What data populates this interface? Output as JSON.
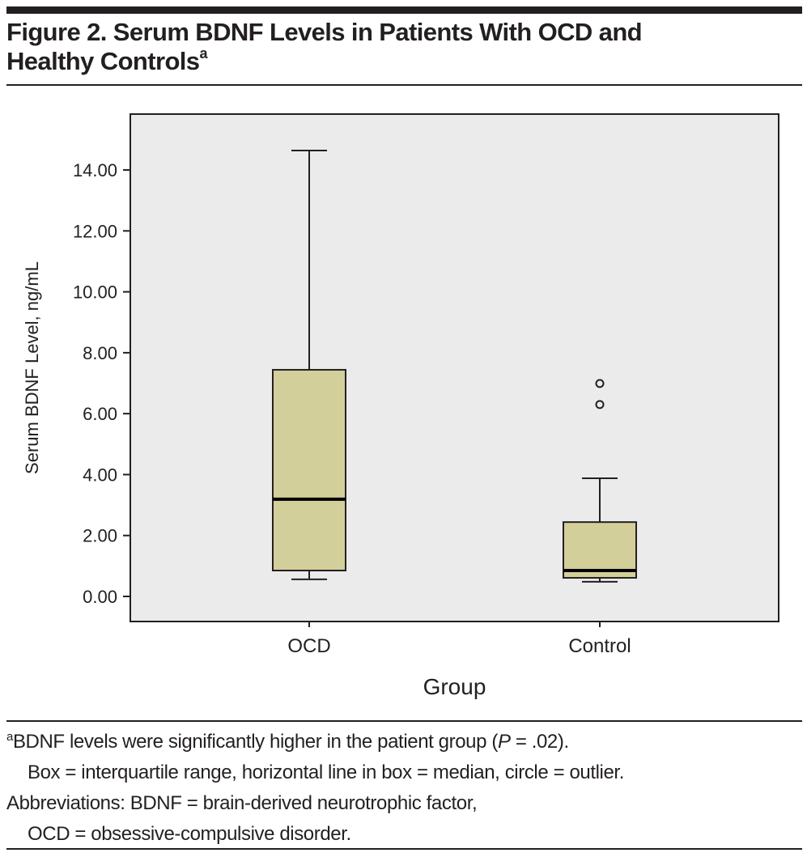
{
  "figure": {
    "title_line1": "Figure 2. Serum BDNF Levels in Patients With OCD and",
    "title_line2": "Healthy Controls",
    "title_superscript": "a"
  },
  "footnotes": {
    "marker": "a",
    "line1": "BDNF levels were significantly higher in the patient group (",
    "line1_p": "P",
    "line1_end": " = .02).",
    "line2": "Box = interquartile range, horizontal line in box = median, circle = outlier.",
    "line3": "Abbreviations: BDNF = brain-derived neurotrophic factor,",
    "line4": "OCD = obsessive-compulsive disorder."
  },
  "colors": {
    "plot_background": "#ebebeb",
    "box_fill": "#d3cf9a",
    "ink": "#231f20"
  },
  "chart_data": {
    "type": "boxplot",
    "title": "Serum BDNF Levels in Patients With OCD and Healthy Controls",
    "xlabel": "Group",
    "ylabel": "Serum BDNF Level, ng/mL",
    "ylim": [
      -0.8,
      15.8
    ],
    "yticks": [
      0,
      2,
      4,
      6,
      8,
      10,
      12,
      14
    ],
    "ytick_labels": [
      "0.00",
      "2.00",
      "4.00",
      "6.00",
      "8.00",
      "10.00",
      "12.00",
      "14.00"
    ],
    "categories": [
      "OCD",
      "Control"
    ],
    "grid": false,
    "legend": "none",
    "boxes": [
      {
        "group": "OCD",
        "whisker_low": 0.56,
        "q1": 0.85,
        "median": 3.19,
        "q3": 7.44,
        "whisker_high": 14.64,
        "outliers": []
      },
      {
        "group": "Control",
        "whisker_low": 0.48,
        "q1": 0.61,
        "median": 0.85,
        "q3": 2.44,
        "whisker_high": 3.88,
        "outliers": [
          6.99,
          6.3
        ]
      }
    ]
  }
}
